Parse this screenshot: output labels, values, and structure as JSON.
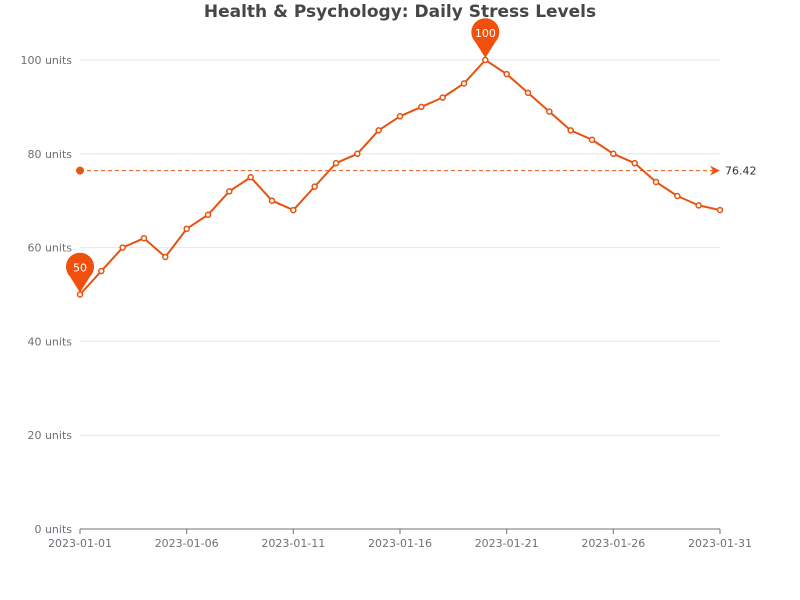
{
  "chart_data": {
    "type": "line",
    "title": "Health & Psychology: Daily Stress Levels",
    "x": [
      "2023-01-01",
      "2023-01-02",
      "2023-01-03",
      "2023-01-04",
      "2023-01-05",
      "2023-01-06",
      "2023-01-07",
      "2023-01-08",
      "2023-01-09",
      "2023-01-10",
      "2023-01-11",
      "2023-01-12",
      "2023-01-13",
      "2023-01-14",
      "2023-01-15",
      "2023-01-16",
      "2023-01-17",
      "2023-01-18",
      "2023-01-19",
      "2023-01-20",
      "2023-01-21",
      "2023-01-22",
      "2023-01-23",
      "2023-01-24",
      "2023-01-25",
      "2023-01-26",
      "2023-01-27",
      "2023-01-28",
      "2023-01-29",
      "2023-01-30",
      "2023-01-31"
    ],
    "values": [
      50,
      55,
      60,
      62,
      58,
      64,
      67,
      72,
      75,
      70,
      68,
      73,
      78,
      80,
      85,
      88,
      90,
      92,
      95,
      100,
      97,
      93,
      89,
      85,
      83,
      80,
      78,
      74,
      71,
      69,
      68
    ],
    "x_tick_labels": [
      "2023-01-01",
      "2023-01-06",
      "2023-01-11",
      "2023-01-16",
      "2023-01-21",
      "2023-01-26",
      "2023-01-31"
    ],
    "y_tick_labels": [
      "0 units",
      "20 units",
      "40 units",
      "60 units",
      "80 units",
      "100 units"
    ],
    "y_ticks": [
      0,
      20,
      40,
      60,
      80,
      100
    ],
    "ylim": [
      0,
      100
    ],
    "average": 76.42,
    "average_label": "76.42",
    "max_marker": {
      "label": "100",
      "value": 100
    },
    "min_marker": {
      "label": "50",
      "value": 50
    },
    "grid": true,
    "line_color": "#e8520f",
    "marker_color": "#f0500c",
    "avg_color": "#e85616"
  }
}
